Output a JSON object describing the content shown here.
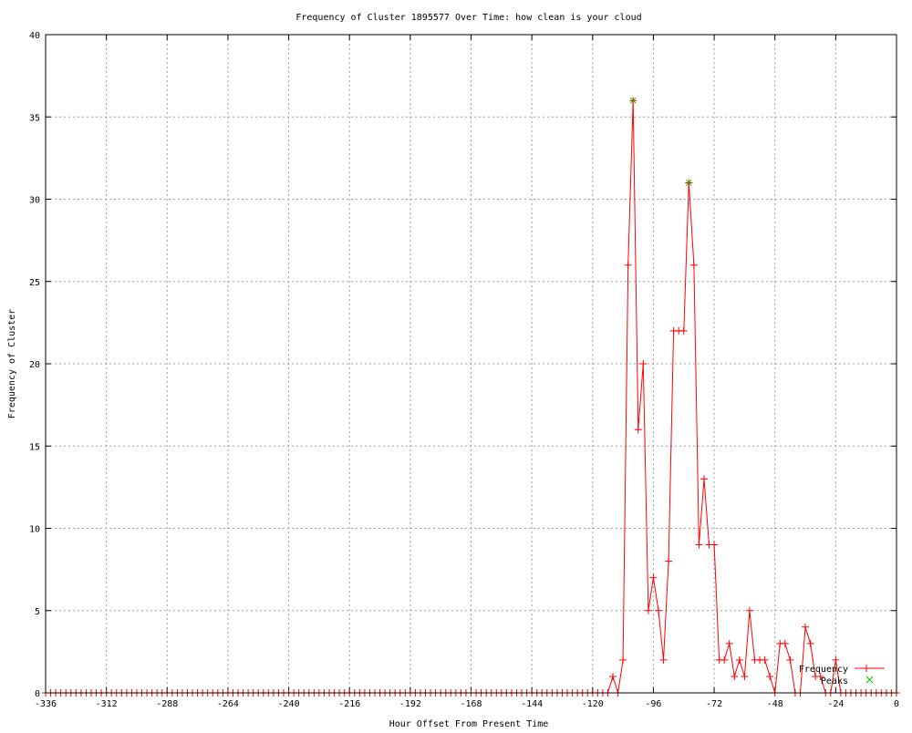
{
  "chart_data": {
    "type": "line",
    "title": "Frequency of Cluster 1895577 Over Time: how clean is your cloud",
    "xlabel": "Hour Offset From Present Time",
    "ylabel": "Frequency of Cluster",
    "xlim": [
      -336,
      0
    ],
    "ylim": [
      0,
      40
    ],
    "grid": true,
    "legend_position": "bottom-right",
    "x_ticks": [
      "-336",
      "-312",
      "-288",
      "-264",
      "-240",
      "-216",
      "-192",
      "-168",
      "-144",
      "-120",
      "-96",
      "-72",
      "-48",
      "-24",
      "0"
    ],
    "y_ticks": [
      "0",
      "5",
      "10",
      "15",
      "20",
      "25",
      "30",
      "35",
      "40"
    ],
    "series": [
      {
        "name": "Frequency",
        "color": "#ff0000",
        "marker": "plus",
        "x": [
          -336,
          -334,
          -332,
          -330,
          -328,
          -326,
          -324,
          -322,
          -320,
          -318,
          -316,
          -314,
          -312,
          -310,
          -308,
          -306,
          -304,
          -302,
          -300,
          -298,
          -296,
          -294,
          -292,
          -290,
          -288,
          -286,
          -284,
          -282,
          -280,
          -278,
          -276,
          -274,
          -272,
          -270,
          -268,
          -266,
          -264,
          -262,
          -260,
          -258,
          -256,
          -254,
          -252,
          -250,
          -248,
          -246,
          -244,
          -242,
          -240,
          -238,
          -236,
          -234,
          -232,
          -230,
          -228,
          -226,
          -224,
          -222,
          -220,
          -218,
          -216,
          -214,
          -212,
          -210,
          -208,
          -206,
          -204,
          -202,
          -200,
          -198,
          -196,
          -194,
          -192,
          -190,
          -188,
          -186,
          -184,
          -182,
          -180,
          -178,
          -176,
          -174,
          -172,
          -170,
          -168,
          -166,
          -164,
          -162,
          -160,
          -158,
          -156,
          -154,
          -152,
          -150,
          -148,
          -146,
          -144,
          -142,
          -140,
          -138,
          -136,
          -134,
          -132,
          -130,
          -128,
          -126,
          -124,
          -122,
          -120,
          -118,
          -116,
          -114,
          -112,
          -110,
          -108,
          -106,
          -104,
          -102,
          -100,
          -98,
          -96,
          -94,
          -92,
          -90,
          -88,
          -86,
          -84,
          -82,
          -80,
          -78,
          -76,
          -74,
          -72,
          -70,
          -68,
          -66,
          -64,
          -62,
          -60,
          -58,
          -56,
          -54,
          -52,
          -50,
          -48,
          -46,
          -44,
          -42,
          -40,
          -38,
          -36,
          -34,
          -32,
          -30,
          -28,
          -26,
          -24,
          -22,
          -20,
          -18,
          -16,
          -14,
          -12,
          -10,
          -8,
          -6,
          -4,
          -2,
          0
        ],
        "values": [
          0,
          0,
          0,
          0,
          0,
          0,
          0,
          0,
          0,
          0,
          0,
          0,
          0,
          0,
          0,
          0,
          0,
          0,
          0,
          0,
          0,
          0,
          0,
          0,
          0,
          0,
          0,
          0,
          0,
          0,
          0,
          0,
          0,
          0,
          0,
          0,
          0,
          0,
          0,
          0,
          0,
          0,
          0,
          0,
          0,
          0,
          0,
          0,
          0,
          0,
          0,
          0,
          0,
          0,
          0,
          0,
          0,
          0,
          0,
          0,
          0,
          0,
          0,
          0,
          0,
          0,
          0,
          0,
          0,
          0,
          0,
          0,
          0,
          0,
          0,
          0,
          0,
          0,
          0,
          0,
          0,
          0,
          0,
          0,
          0,
          0,
          0,
          0,
          0,
          0,
          0,
          0,
          0,
          0,
          0,
          0,
          0,
          0,
          0,
          0,
          0,
          0,
          0,
          0,
          0,
          0,
          0,
          0,
          0,
          0,
          0,
          0,
          1,
          0,
          2,
          26,
          36,
          16,
          20,
          5,
          7,
          5,
          2,
          8,
          22,
          22,
          22,
          31,
          26,
          9,
          13,
          9,
          9,
          2,
          2,
          3,
          1,
          2,
          1,
          5,
          2,
          2,
          2,
          1,
          0,
          3,
          3,
          2,
          0,
          0,
          4,
          3,
          1,
          1,
          0,
          0,
          2,
          0,
          0,
          0,
          0,
          0,
          0,
          0,
          0,
          0,
          0,
          0,
          0
        ]
      },
      {
        "name": "Peaks",
        "color": "#00c000",
        "marker": "x",
        "x": [
          -104,
          -82
        ],
        "values": [
          36,
          31
        ]
      }
    ]
  }
}
